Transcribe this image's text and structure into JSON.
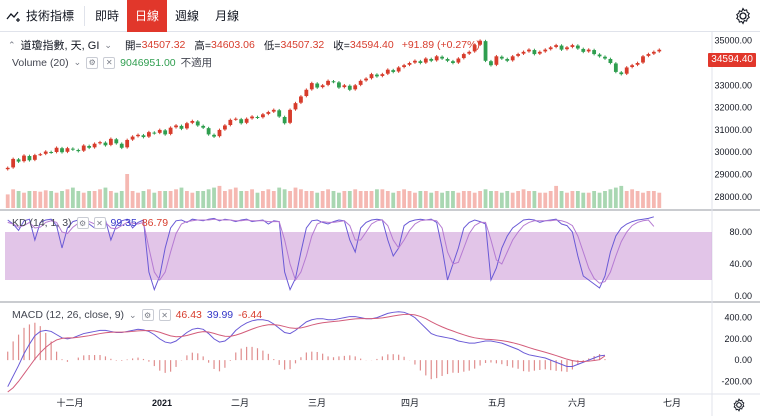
{
  "toolbar": {
    "indicator_label": "技術指標",
    "intervals": [
      {
        "label": "即時",
        "active": false
      },
      {
        "label": "日線",
        "active": true
      },
      {
        "label": "週線",
        "active": false
      },
      {
        "label": "月線",
        "active": false
      }
    ],
    "settings_icon": "gear-icon"
  },
  "legend": {
    "symbol": "道瓊指數, 天, GI",
    "open_label": "開=",
    "open": "34507.32",
    "high_label": "高=",
    "high": "34603.06",
    "low_label": "低=",
    "low": "34507.32",
    "close_label": "收=",
    "close": "34594.40",
    "change": "+91.89 (+0.27%)",
    "volume_label": "Volume (20)",
    "volume_value": "9046951.00",
    "volume_ma": "不適用",
    "kd_label": "KD (14, 1, 3)",
    "kd_k": "99.35",
    "kd_d": "86.79",
    "macd_label": "MACD (12, 26, close, 9)",
    "macd_a": "46.43",
    "macd_b": "39.99",
    "macd_c": "-6.44"
  },
  "price_badge": "34594.40",
  "price_axis": [
    "35000.00",
    "34000.00",
    "33000.00",
    "32000.00",
    "31000.00",
    "30000.00",
    "29000.00",
    "28000.00"
  ],
  "kd_axis": [
    "80.00",
    "40.00",
    "0.00"
  ],
  "macd_axis": [
    "400.00",
    "200.00",
    "0.00",
    "-200.00"
  ],
  "time_axis": [
    "十二月",
    "2021",
    "二月",
    "三月",
    "四月",
    "五月",
    "六月",
    "七月"
  ],
  "colors": {
    "up": "#d73c2c",
    "down": "#2f9e4f",
    "k": "#6a5ad6",
    "d": "#b57bd2",
    "band": "#ce9fd8",
    "macd": "#6a5ad6",
    "signal": "#d35c7a",
    "hist": "#e08d8d"
  },
  "chart_data": [
    {
      "type": "candlestick",
      "title": "道瓊指數, 天, GI",
      "ylim": [
        27500,
        35300
      ],
      "x_labels": [
        "十二月",
        "2021",
        "二月",
        "三月",
        "四月",
        "五月",
        "六月",
        "七月"
      ],
      "close": [
        29300,
        29700,
        29580,
        29850,
        29640,
        29870,
        29910,
        30030,
        29990,
        30200,
        30000,
        30180,
        30120,
        30050,
        30300,
        30200,
        30380,
        30450,
        30310,
        30600,
        30400,
        30200,
        30550,
        30700,
        30780,
        30680,
        30900,
        30850,
        31000,
        30800,
        31100,
        31200,
        31050,
        31300,
        31400,
        31200,
        31100,
        30800,
        30700,
        31000,
        31200,
        31450,
        31500,
        31300,
        31500,
        31600,
        31550,
        31700,
        31800,
        31900,
        31600,
        31300,
        31900,
        32200,
        32500,
        32800,
        33100,
        32900,
        33000,
        33200,
        33150,
        32900,
        33000,
        32800,
        33000,
        33200,
        33300,
        33500,
        33400,
        33500,
        33700,
        33600,
        33800,
        33900,
        34000,
        34100,
        34000,
        34200,
        34100,
        34300,
        34200,
        34100,
        34000,
        34200,
        34400,
        34500,
        34800,
        35000,
        34100,
        33900,
        34300,
        34200,
        34100,
        34300,
        34400,
        34500,
        34600,
        34400,
        34500,
        34600,
        34700,
        34800,
        34600,
        34700,
        34800,
        34650,
        34500,
        34600,
        34400,
        34300,
        34200,
        34000,
        33600,
        33500,
        33800,
        33900,
        34000,
        34300,
        34400,
        34500,
        34594
      ]
    },
    {
      "type": "bar",
      "title": "Volume (20)",
      "values_relative": [
        0.4,
        0.55,
        0.5,
        0.45,
        0.5,
        0.5,
        0.48,
        0.52,
        0.5,
        0.45,
        0.5,
        0.55,
        0.6,
        0.5,
        0.45,
        0.5,
        0.5,
        0.55,
        0.6,
        0.5,
        0.45,
        0.5,
        1.0,
        0.5,
        0.45,
        0.5,
        0.55,
        0.45,
        0.5,
        0.5,
        0.5,
        0.55,
        0.6,
        0.5,
        0.45,
        0.5,
        0.5,
        0.55,
        0.6,
        0.65,
        0.5,
        0.55,
        0.6,
        0.5,
        0.5,
        0.55,
        0.45,
        0.5,
        0.55,
        0.5,
        0.6,
        0.55,
        0.5,
        0.6,
        0.55,
        0.5,
        0.5,
        0.45,
        0.5,
        0.55,
        0.5,
        0.45,
        0.5,
        0.5,
        0.55,
        0.5,
        0.5,
        0.5,
        0.55,
        0.55,
        0.5,
        0.45,
        0.5,
        0.55,
        0.5,
        0.45,
        0.5,
        0.5,
        0.45,
        0.5,
        0.45,
        0.5,
        0.5,
        0.45,
        0.5,
        0.5,
        0.45,
        0.5,
        0.55,
        0.5,
        0.5,
        0.45,
        0.5,
        0.45,
        0.5,
        0.55,
        0.5,
        0.5,
        0.45,
        0.45,
        0.5,
        0.65,
        0.5,
        0.45,
        0.5,
        0.5,
        0.45,
        0.45,
        0.5,
        0.45,
        0.5,
        0.55,
        0.6,
        0.65,
        0.5,
        0.55,
        0.5,
        0.45,
        0.5,
        0.5,
        0.45
      ]
    },
    {
      "type": "line",
      "title": "KD (14, 1, 3)",
      "ylim": [
        0,
        100
      ],
      "series": [
        {
          "name": "K",
          "values": [
            95,
            90,
            82,
            94,
            96,
            70,
            92,
            95,
            96,
            88,
            60,
            85,
            93,
            95,
            96,
            90,
            85,
            92,
            95,
            70,
            88,
            94,
            96,
            85,
            92,
            95,
            30,
            8,
            25,
            60,
            85,
            94,
            95,
            92,
            96,
            95,
            94,
            96,
            97,
            94,
            96,
            95,
            93,
            95,
            96,
            93,
            94,
            95,
            90,
            94,
            93,
            30,
            8,
            22,
            55,
            85,
            94,
            95,
            92,
            90,
            93,
            95,
            94,
            70,
            55,
            85,
            92,
            95,
            96,
            95,
            70,
            50,
            60,
            88,
            93,
            95,
            96,
            95,
            96,
            92,
            60,
            20,
            40,
            60,
            85,
            92,
            95,
            93,
            90,
            20,
            35,
            60,
            75,
            85,
            90,
            95,
            96,
            95,
            92,
            94,
            95,
            96,
            90,
            88,
            80,
            50,
            25,
            20,
            15,
            10,
            25,
            55,
            75,
            85,
            90,
            93,
            95,
            96,
            97,
            99
          ]
        },
        {
          "name": "D",
          "values": [
            92,
            90,
            86,
            88,
            92,
            85,
            86,
            92,
            94,
            92,
            80,
            78,
            86,
            91,
            94,
            93,
            90,
            89,
            92,
            85,
            84,
            88,
            92,
            91,
            90,
            92,
            60,
            30,
            20,
            30,
            55,
            78,
            90,
            93,
            94,
            95,
            95,
            95,
            96,
            95,
            95,
            95,
            94,
            94,
            95,
            94,
            94,
            94,
            93,
            93,
            93,
            70,
            40,
            20,
            30,
            50,
            75,
            90,
            93,
            92,
            92,
            93,
            94,
            88,
            70,
            70,
            80,
            90,
            94,
            95,
            88,
            70,
            60,
            70,
            82,
            90,
            94,
            95,
            95,
            94,
            85,
            55,
            40,
            42,
            60,
            78,
            88,
            92,
            92,
            70,
            45,
            40,
            55,
            70,
            80,
            88,
            92,
            94,
            94,
            94,
            94,
            95,
            94,
            92,
            88,
            75,
            55,
            35,
            22,
            16,
            18,
            30,
            50,
            68,
            80,
            88,
            92,
            94,
            95,
            87
          ]
        }
      ]
    },
    {
      "type": "line",
      "title": "MACD (12, 26, close, 9)",
      "ylim": [
        -300,
        500
      ],
      "series": [
        {
          "name": "MACD",
          "values": [
            -250,
            -150,
            -50,
            60,
            150,
            230,
            270,
            280,
            270,
            240,
            210,
            200,
            210,
            230,
            250,
            260,
            270,
            280,
            280,
            270,
            260,
            260,
            270,
            280,
            290,
            285,
            270,
            240,
            200,
            170,
            160,
            180,
            220,
            260,
            290,
            300,
            290,
            250,
            200,
            170,
            180,
            220,
            280,
            320,
            350,
            370,
            380,
            380,
            370,
            340,
            300,
            260,
            250,
            280,
            320,
            360,
            380,
            390,
            390,
            380,
            380,
            390,
            400,
            410,
            410,
            400,
            390,
            390,
            400,
            420,
            440,
            450,
            455,
            450,
            430,
            400,
            350,
            300,
            250,
            230,
            220,
            210,
            200,
            180,
            170,
            160,
            160,
            170,
            180,
            180,
            170,
            160,
            140,
            120,
            100,
            70,
            50,
            40,
            30,
            20,
            0,
            -20,
            -40,
            -60,
            -60,
            -40,
            -20,
            0,
            20,
            40,
            46
          ]
        },
        {
          "name": "Signal",
          "values": [
            -300,
            -260,
            -200,
            -130,
            -60,
            10,
            70,
            120,
            160,
            190,
            205,
            210,
            210,
            215,
            222,
            230,
            240,
            250,
            258,
            262,
            263,
            264,
            266,
            270,
            275,
            278,
            279,
            275,
            262,
            245,
            228,
            220,
            222,
            232,
            246,
            260,
            268,
            265,
            252,
            236,
            225,
            224,
            235,
            252,
            272,
            292,
            310,
            324,
            333,
            334,
            328,
            316,
            303,
            299,
            303,
            315,
            330,
            342,
            352,
            358,
            363,
            368,
            375,
            382,
            388,
            391,
            391,
            391,
            393,
            398,
            406,
            415,
            423,
            430,
            431,
            426,
            411,
            390,
            362,
            336,
            313,
            292,
            274,
            255,
            238,
            222,
            210,
            202,
            197,
            194,
            189,
            184,
            175,
            164,
            151,
            135,
            118,
            102,
            88,
            74,
            59,
            43,
            26,
            9,
            -5,
            -12,
            -13,
            -10,
            -4,
            4,
            40
          ]
        }
      ]
    }
  ]
}
